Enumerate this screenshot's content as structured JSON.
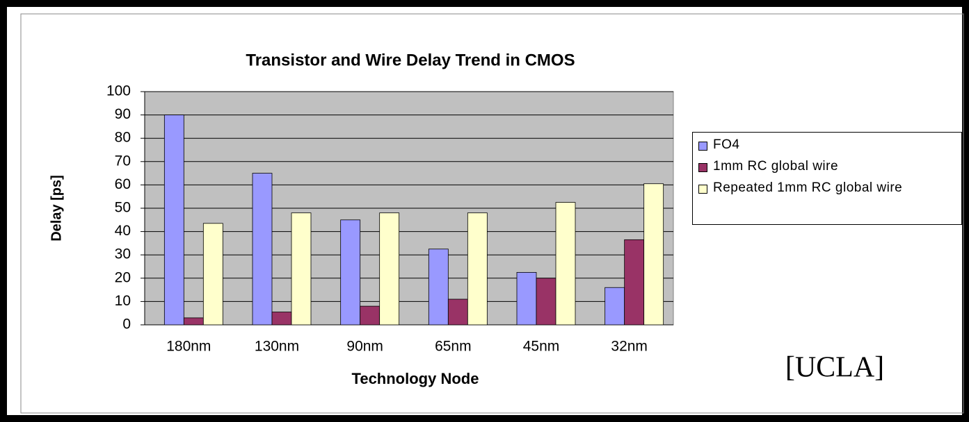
{
  "chart_data": {
    "type": "bar",
    "title": "Transistor and Wire Delay Trend in CMOS",
    "y_label": "Delay [ps]",
    "x_label": "Technology Node",
    "annotation": "[UCLA]",
    "categories": [
      "180nm",
      "130nm",
      "90nm",
      "65nm",
      "45nm",
      "32nm"
    ],
    "series": [
      {
        "name": "FO4",
        "color": "#9999ff",
        "values": [
          90,
          65,
          45,
          32.5,
          22.5,
          16
        ]
      },
      {
        "name": "1mm RC global wire",
        "color": "#993366",
        "values": [
          3,
          5.5,
          8,
          11,
          20,
          36.5
        ]
      },
      {
        "name": "Repeated 1mm RC global wire",
        "color": "#ffffcc",
        "values": [
          43.5,
          48,
          48,
          48,
          52.5,
          60.5
        ]
      }
    ],
    "ylim": [
      0,
      100
    ],
    "yticks": [
      0,
      10,
      20,
      30,
      40,
      50,
      60,
      70,
      80,
      90,
      100
    ],
    "grid": true,
    "legend": "right"
  }
}
